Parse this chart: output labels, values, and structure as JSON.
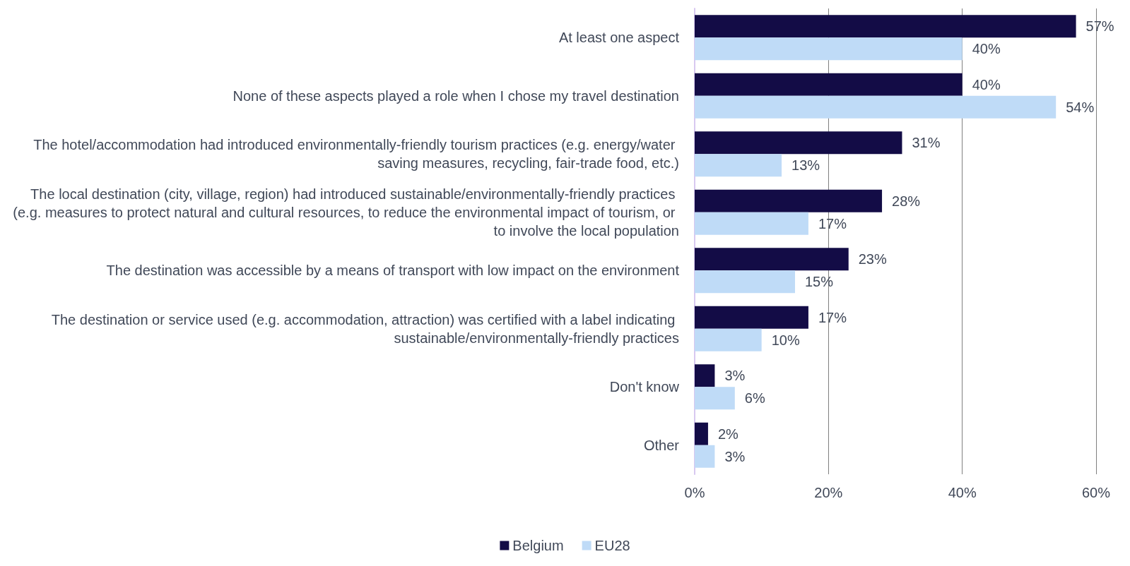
{
  "chart_data": {
    "type": "bar",
    "orientation": "horizontal",
    "categories": [
      "At least one aspect",
      "None of these aspects played a role when I chose my travel destination",
      "The hotel/accommodation had introduced environmentally-friendly tourism practices (e.g. energy/water saving measures, recycling, fair-trade food, etc.)",
      "The local destination (city, village, region) had introduced sustainable/environmentally-friendly practices (e.g. measures to protect natural and cultural resources, to reduce the environmental impact of tourism, or to involve the local population",
      "The destination was accessible by a means of transport with low impact on the environment",
      "The destination or service used (e.g. accommodation, attraction) was certified with a label indicating sustainable/environmentally-friendly practices",
      "Don't know",
      "Other"
    ],
    "series": [
      {
        "name": "Belgium",
        "color": "#130c46",
        "values": [
          57,
          40,
          31,
          28,
          23,
          17,
          3,
          2
        ],
        "value_labels": [
          "57%",
          "40%",
          "31%",
          "28%",
          "23%",
          "17%",
          "3%",
          "2%"
        ]
      },
      {
        "name": "EU28",
        "color": "#bfdbf7",
        "values": [
          40,
          54,
          13,
          17,
          15,
          10,
          6,
          3
        ],
        "value_labels": [
          "40%",
          "54%",
          "13%",
          "17%",
          "15%",
          "10%",
          "6%",
          "3%"
        ]
      }
    ],
    "xlim": [
      0,
      60
    ],
    "xticks": [
      {
        "value": 0,
        "label": "0%"
      },
      {
        "value": 20,
        "label": "20%"
      },
      {
        "value": 40,
        "label": "40%"
      },
      {
        "value": 60,
        "label": "60%"
      }
    ],
    "grid": "x",
    "legend": "bottom"
  }
}
